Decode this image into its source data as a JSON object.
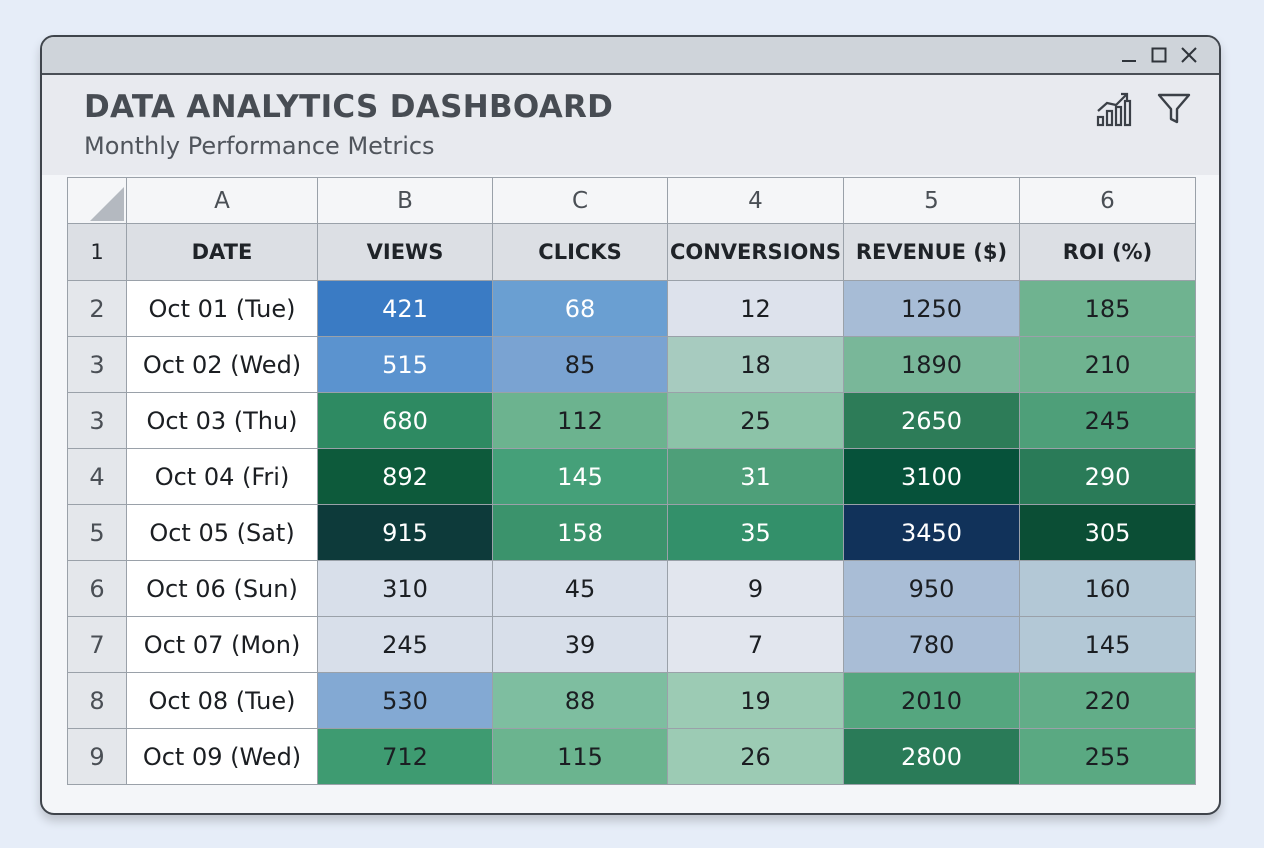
{
  "header": {
    "title": "DATA ANALYTICS DASHBOARD",
    "subtitle": "Monthly Performance Metrics",
    "icons": [
      "bar-chart-trend-icon",
      "filter-icon"
    ]
  },
  "window_controls": [
    "minimize-icon",
    "maximize-icon",
    "close-icon"
  ],
  "sheet": {
    "column_letters": [
      "A",
      "B",
      "C",
      "4",
      "5",
      "6"
    ],
    "header_row_number": "1",
    "fields": [
      "DATE",
      "VIEWS",
      "CLICKS",
      "CONVERSIONS",
      "REVENUE ($)",
      "ROI (%)"
    ],
    "rows": [
      {
        "num": "2",
        "cells": [
          "Oct 01 (Tue)",
          "421",
          "68",
          "12",
          "1250",
          "185"
        ]
      },
      {
        "num": "3",
        "cells": [
          "Oct 02 (Wed)",
          "515",
          "85",
          "18",
          "1890",
          "210"
        ]
      },
      {
        "num": "3",
        "cells": [
          "Oct 03 (Thu)",
          "680",
          "112",
          "25",
          "2650",
          "245"
        ]
      },
      {
        "num": "4",
        "cells": [
          "Oct 04 (Fri)",
          "892",
          "145",
          "31",
          "3100",
          "290"
        ]
      },
      {
        "num": "5",
        "cells": [
          "Oct 05 (Sat)",
          "915",
          "158",
          "35",
          "3450",
          "305"
        ]
      },
      {
        "num": "6",
        "cells": [
          "Oct 06 (Sun)",
          "310",
          "45",
          "9",
          "950",
          "160"
        ]
      },
      {
        "num": "7",
        "cells": [
          "Oct 07 (Mon)",
          "245",
          "39",
          "7",
          "780",
          "145"
        ]
      },
      {
        "num": "8",
        "cells": [
          "Oct 08 (Tue)",
          "530",
          "88",
          "19",
          "2010",
          "220"
        ]
      },
      {
        "num": "9",
        "cells": [
          "Oct 09 (Wed)",
          "712",
          "115",
          "26",
          "2800",
          "255"
        ]
      }
    ],
    "cell_colors": [
      [
        "#3a7bc4",
        "#6a9fd2",
        "#dde2ec",
        "#a7bcd6",
        "#6fb390"
      ],
      [
        "#5b93cf",
        "#7aa3d2",
        "#a7cbbf",
        "#79b799",
        "#6fb390"
      ],
      [
        "#2e8a62",
        "#6cb38f",
        "#8cc3a8",
        "#2d7c58",
        "#4e9f79"
      ],
      [
        "#0d5a3b",
        "#45a079",
        "#4e9f79",
        "#06523a",
        "#2a7b58"
      ],
      [
        "#0d3a3a",
        "#3b936c",
        "#33906a",
        "#11325a",
        "#0b4e35"
      ],
      [
        "#d8dfea",
        "#d8dfea",
        "#e2e6ee",
        "#a9bdd6",
        "#b3c8d6"
      ],
      [
        "#d8dfea",
        "#d8dfea",
        "#e2e6ee",
        "#a9bdd6",
        "#b3c8d6"
      ],
      [
        "#83a9d3",
        "#7ebea0",
        "#9ccbb4",
        "#55a67f",
        "#62ad88"
      ],
      [
        "#3e9b71",
        "#6bb48f",
        "#9ccbb4",
        "#2a7b58",
        "#5aa982"
      ]
    ],
    "light_text_cells": [
      [
        true,
        true,
        false,
        false,
        false
      ],
      [
        true,
        false,
        false,
        false,
        false
      ],
      [
        true,
        false,
        false,
        true,
        false
      ],
      [
        true,
        true,
        true,
        true,
        true
      ],
      [
        true,
        true,
        true,
        true,
        true
      ],
      [
        false,
        false,
        false,
        false,
        false
      ],
      [
        false,
        false,
        false,
        false,
        false
      ],
      [
        false,
        false,
        false,
        false,
        false
      ],
      [
        false,
        false,
        false,
        true,
        false
      ]
    ]
  }
}
